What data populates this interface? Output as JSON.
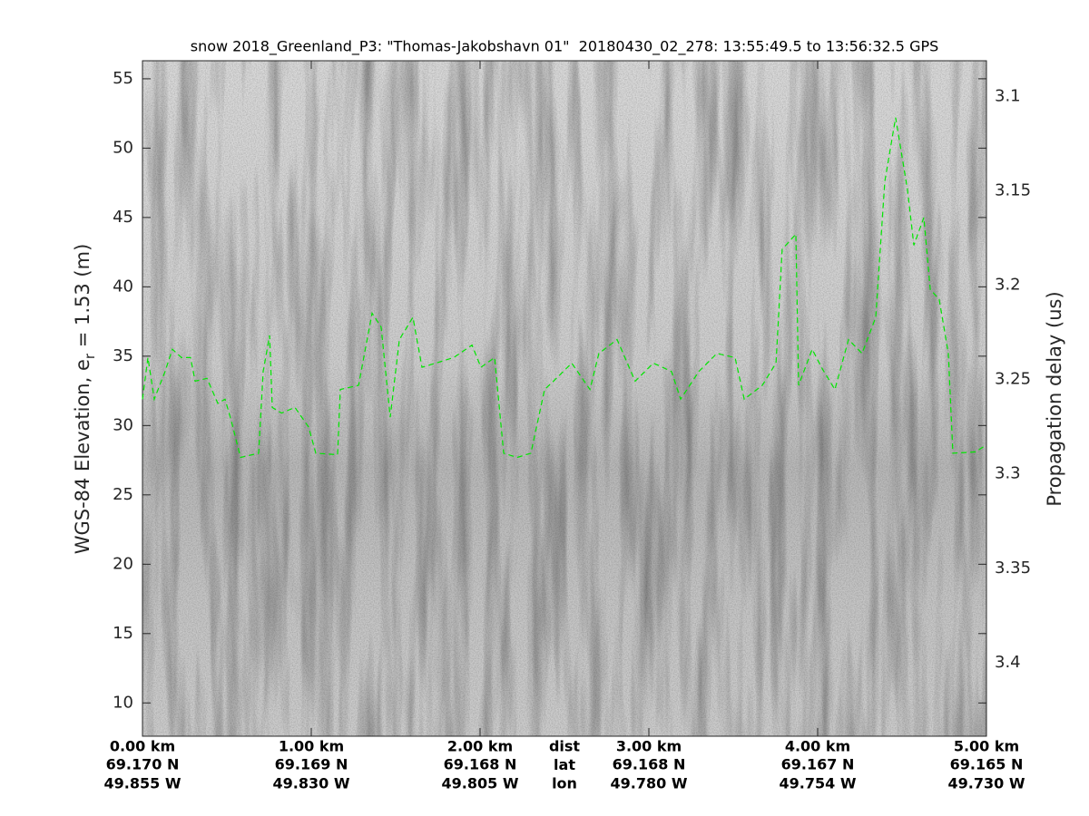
{
  "chart_data": {
    "type": "line",
    "title": "snow 2018_Greenland_P3: \"Thomas-Jakobshavn 01\"  20180430_02_278: 13:55:49.5 to 13:56:32.5 GPS",
    "ylabel": {
      "text": "WGS-84 Elevation, e",
      "subscript": "r",
      "suffix": " = 1.53 (m)"
    },
    "y2label": "Propagation delay (us)",
    "xlim": [
      0,
      5
    ],
    "ylim": [
      7.6,
      56.3
    ],
    "y2lim": [
      3.081,
      3.439
    ],
    "y2_reversed": true,
    "xticks": [
      {
        "value": 0,
        "label": "0.00 km"
      },
      {
        "value": 1,
        "label": "1.00 km"
      },
      {
        "value": 2,
        "label": "2.00 km"
      },
      {
        "value": 3,
        "label": "3.00 km"
      },
      {
        "value": 4,
        "label": "4.00 km"
      },
      {
        "value": 5,
        "label": "5.00 km"
      }
    ],
    "lat_labels": [
      "69.170 N",
      "69.169 N",
      "69.168 N",
      "69.168 N",
      "69.167 N",
      "69.165 N"
    ],
    "lon_labels": [
      "49.855 W",
      "49.830 W",
      "49.805 W",
      "49.780 W",
      "49.754 W",
      "49.730 W"
    ],
    "row_labels": [
      "dist",
      "lat",
      "lon"
    ],
    "yticks": [
      10,
      15,
      20,
      25,
      30,
      35,
      40,
      45,
      50,
      55
    ],
    "y2ticks": [
      3.1,
      3.15,
      3.2,
      3.25,
      3.3,
      3.35,
      3.4
    ],
    "series": [
      {
        "color": "#00e600",
        "dashed": true,
        "x": [
          0.0,
          0.032,
          0.07,
          0.134,
          0.177,
          0.231,
          0.285,
          0.312,
          0.382,
          0.446,
          0.489,
          0.527,
          0.581,
          0.688,
          0.715,
          0.753,
          0.769,
          0.823,
          0.903,
          0.984,
          1.027,
          1.156,
          1.172,
          1.28,
          1.36,
          1.414,
          1.468,
          1.522,
          1.602,
          1.656,
          1.737,
          1.844,
          1.952,
          2.005,
          2.086,
          2.14,
          2.22,
          2.301,
          2.382,
          2.435,
          2.543,
          2.651,
          2.704,
          2.812,
          2.919,
          3.027,
          3.134,
          3.188,
          3.296,
          3.403,
          3.511,
          3.565,
          3.672,
          3.753,
          3.79,
          3.871,
          3.887,
          3.968,
          4.022,
          4.102,
          4.183,
          4.263,
          4.344,
          4.398,
          4.462,
          4.532,
          4.57,
          4.629,
          4.667,
          4.72,
          4.774,
          4.801,
          4.935,
          5.0
        ],
        "values": [
          31.9,
          34.9,
          31.9,
          33.9,
          35.5,
          34.9,
          34.9,
          33.2,
          33.4,
          31.6,
          31.9,
          30.3,
          27.7,
          28.0,
          33.9,
          36.5,
          31.3,
          30.9,
          31.3,
          29.9,
          28.0,
          27.9,
          32.6,
          32.9,
          38.1,
          37.1,
          30.6,
          36.2,
          37.8,
          34.2,
          34.5,
          34.9,
          35.8,
          34.2,
          34.9,
          28.0,
          27.7,
          28.0,
          32.6,
          33.2,
          34.5,
          32.6,
          35.2,
          36.2,
          33.2,
          34.5,
          33.9,
          31.9,
          33.9,
          35.2,
          34.9,
          31.9,
          32.9,
          34.5,
          42.7,
          43.8,
          32.9,
          35.5,
          34.2,
          32.6,
          36.2,
          35.2,
          37.8,
          47.6,
          52.2,
          47.0,
          43.0,
          45.0,
          39.8,
          39.1,
          35.2,
          28.0,
          28.1,
          28.6
        ]
      }
    ]
  }
}
